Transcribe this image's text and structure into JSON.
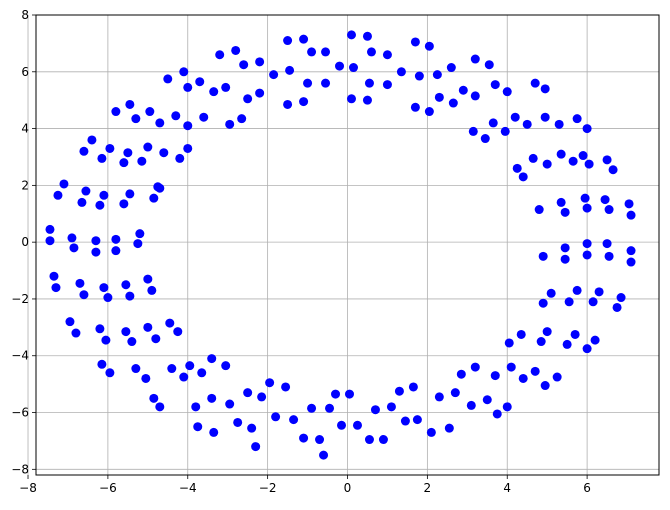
{
  "chart_data": {
    "type": "scatter",
    "title": "",
    "xlabel": "",
    "ylabel": "",
    "xlim": [
      -7.8,
      7.8
    ],
    "ylim": [
      -8.2,
      8.0
    ],
    "grid": true,
    "x_ticks": [
      -8,
      -6,
      -4,
      -2,
      0,
      2,
      4,
      6
    ],
    "y_ticks": [
      -8,
      -6,
      -4,
      -2,
      0,
      2,
      4,
      6,
      8
    ],
    "x_tick_labels": [
      "−8",
      "−6",
      "−4",
      "−2",
      "0",
      "2",
      "4",
      "6"
    ],
    "y_tick_labels": [
      "−8",
      "−6",
      "−4",
      "−2",
      "0",
      "2",
      "4",
      "6",
      "8"
    ],
    "marker_color": "#0000ff",
    "points": [
      [
        0.1,
        7.3
      ],
      [
        0.5,
        7.25
      ],
      [
        -1.5,
        7.1
      ],
      [
        -1.1,
        7.15
      ],
      [
        1.7,
        7.05
      ],
      [
        2.05,
        6.9
      ],
      [
        -2.8,
        6.75
      ],
      [
        -3.2,
        6.6
      ],
      [
        -0.9,
        6.7
      ],
      [
        -0.55,
        6.7
      ],
      [
        0.6,
        6.7
      ],
      [
        1.0,
        6.6
      ],
      [
        3.2,
        6.45
      ],
      [
        3.55,
        6.25
      ],
      [
        -2.2,
        6.35
      ],
      [
        -2.6,
        6.25
      ],
      [
        -0.2,
        6.2
      ],
      [
        0.15,
        6.15
      ],
      [
        2.6,
        6.15
      ],
      [
        2.25,
        5.9
      ],
      [
        1.35,
        6.0
      ],
      [
        1.8,
        5.85
      ],
      [
        -1.45,
        6.05
      ],
      [
        -1.85,
        5.9
      ],
      [
        -4.1,
        6.0
      ],
      [
        -4.5,
        5.75
      ],
      [
        -3.7,
        5.65
      ],
      [
        -4.0,
        5.45
      ],
      [
        -3.05,
        5.45
      ],
      [
        -3.35,
        5.3
      ],
      [
        -1.0,
        5.6
      ],
      [
        -0.55,
        5.6
      ],
      [
        0.55,
        5.6
      ],
      [
        1.0,
        5.55
      ],
      [
        3.7,
        5.55
      ],
      [
        4.0,
        5.3
      ],
      [
        -5.8,
        4.6
      ],
      [
        -5.45,
        4.85
      ],
      [
        -5.3,
        4.35
      ],
      [
        -4.95,
        4.6
      ],
      [
        -4.3,
        4.45
      ],
      [
        -4.0,
        4.1
      ],
      [
        -4.7,
        4.2
      ],
      [
        -3.6,
        4.4
      ],
      [
        -2.95,
        4.15
      ],
      [
        -2.65,
        4.35
      ],
      [
        -2.5,
        5.05
      ],
      [
        -2.2,
        5.25
      ],
      [
        -1.5,
        4.85
      ],
      [
        -1.1,
        4.95
      ],
      [
        0.1,
        5.05
      ],
      [
        0.5,
        5.0
      ],
      [
        2.05,
        4.6
      ],
      [
        1.7,
        4.75
      ],
      [
        2.3,
        5.1
      ],
      [
        2.65,
        4.9
      ],
      [
        2.9,
        5.35
      ],
      [
        3.2,
        5.15
      ],
      [
        4.7,
        5.6
      ],
      [
        4.95,
        5.4
      ],
      [
        4.5,
        4.15
      ],
      [
        4.95,
        4.4
      ],
      [
        5.3,
        4.15
      ],
      [
        5.75,
        4.35
      ],
      [
        6.0,
        4.0
      ],
      [
        4.2,
        4.4
      ],
      [
        3.15,
        3.9
      ],
      [
        3.45,
        3.65
      ],
      [
        3.65,
        4.2
      ],
      [
        3.95,
        3.9
      ],
      [
        4.25,
        2.6
      ],
      [
        4.4,
        2.3
      ],
      [
        -6.4,
        3.6
      ],
      [
        -6.6,
        3.2
      ],
      [
        -6.15,
        2.95
      ],
      [
        -5.95,
        3.3
      ],
      [
        -5.5,
        3.15
      ],
      [
        -5.15,
        2.85
      ],
      [
        -5.0,
        3.35
      ],
      [
        -4.6,
        3.15
      ],
      [
        -4.2,
        2.95
      ],
      [
        -4.0,
        3.3
      ],
      [
        -5.6,
        2.8
      ],
      [
        -4.7,
        1.9
      ],
      [
        -7.1,
        2.05
      ],
      [
        -7.25,
        1.65
      ],
      [
        -6.55,
        1.8
      ],
      [
        -6.65,
        1.4
      ],
      [
        -6.1,
        1.65
      ],
      [
        -6.2,
        1.3
      ],
      [
        -5.45,
        1.7
      ],
      [
        -5.6,
        1.35
      ],
      [
        -4.85,
        1.55
      ],
      [
        -4.75,
        1.95
      ],
      [
        4.65,
        2.95
      ],
      [
        5.0,
        2.75
      ],
      [
        5.35,
        3.1
      ],
      [
        5.65,
        2.85
      ],
      [
        5.9,
        3.05
      ],
      [
        6.05,
        2.75
      ],
      [
        6.5,
        2.9
      ],
      [
        6.65,
        2.55
      ],
      [
        4.8,
        1.15
      ],
      [
        5.35,
        1.4
      ],
      [
        5.45,
        1.05
      ],
      [
        5.95,
        1.55
      ],
      [
        6.45,
        1.5
      ],
      [
        6.55,
        1.15
      ],
      [
        6.0,
        1.2
      ],
      [
        7.05,
        1.35
      ],
      [
        7.1,
        0.95
      ],
      [
        -7.45,
        0.45
      ],
      [
        -7.45,
        0.05
      ],
      [
        -6.9,
        0.15
      ],
      [
        -6.85,
        -0.2
      ],
      [
        -6.3,
        0.05
      ],
      [
        -6.3,
        -0.35
      ],
      [
        -5.8,
        0.1
      ],
      [
        -5.8,
        -0.3
      ],
      [
        -5.2,
        0.3
      ],
      [
        -5.25,
        -0.05
      ],
      [
        4.9,
        -0.5
      ],
      [
        5.45,
        -0.2
      ],
      [
        5.45,
        -0.6
      ],
      [
        6.0,
        -0.05
      ],
      [
        6.0,
        -0.45
      ],
      [
        6.5,
        -0.05
      ],
      [
        6.55,
        -0.5
      ],
      [
        7.1,
        -0.3
      ],
      [
        7.1,
        -0.7
      ],
      [
        -7.35,
        -1.2
      ],
      [
        -7.3,
        -1.6
      ],
      [
        -6.7,
        -1.45
      ],
      [
        -6.6,
        -1.85
      ],
      [
        -6.1,
        -1.6
      ],
      [
        -6.0,
        -1.95
      ],
      [
        -5.55,
        -1.5
      ],
      [
        -5.45,
        -1.9
      ],
      [
        -5.0,
        -1.3
      ],
      [
        -4.9,
        -1.7
      ],
      [
        4.9,
        -2.15
      ],
      [
        5.1,
        -1.8
      ],
      [
        5.55,
        -2.1
      ],
      [
        5.75,
        -1.7
      ],
      [
        6.15,
        -2.1
      ],
      [
        6.3,
        -1.75
      ],
      [
        6.75,
        -2.3
      ],
      [
        6.85,
        -1.95
      ],
      [
        -6.95,
        -2.8
      ],
      [
        -6.8,
        -3.2
      ],
      [
        -6.2,
        -3.05
      ],
      [
        -6.05,
        -3.45
      ],
      [
        -5.55,
        -3.15
      ],
      [
        -5.4,
        -3.5
      ],
      [
        -5.0,
        -3.0
      ],
      [
        -4.8,
        -3.4
      ],
      [
        -4.45,
        -2.85
      ],
      [
        -4.25,
        -3.15
      ],
      [
        4.05,
        -3.55
      ],
      [
        4.35,
        -3.25
      ],
      [
        4.85,
        -3.5
      ],
      [
        5.0,
        -3.15
      ],
      [
        5.5,
        -3.6
      ],
      [
        5.7,
        -3.25
      ],
      [
        6.0,
        -3.75
      ],
      [
        6.2,
        -3.45
      ],
      [
        -6.15,
        -4.3
      ],
      [
        -5.95,
        -4.6
      ],
      [
        -5.3,
        -4.45
      ],
      [
        -5.05,
        -4.8
      ],
      [
        -4.85,
        -5.5
      ],
      [
        -4.7,
        -5.8
      ],
      [
        -4.4,
        -4.45
      ],
      [
        -4.1,
        -4.75
      ],
      [
        -3.95,
        -4.35
      ],
      [
        -3.65,
        -4.6
      ],
      [
        -3.4,
        -4.1
      ],
      [
        -3.05,
        -4.35
      ],
      [
        -3.8,
        -5.8
      ],
      [
        -3.75,
        -6.5
      ],
      [
        -3.4,
        -5.5
      ],
      [
        -3.35,
        -6.7
      ],
      [
        -2.95,
        -5.7
      ],
      [
        -2.75,
        -6.35
      ],
      [
        -2.5,
        -5.3
      ],
      [
        -2.4,
        -6.55
      ],
      [
        -2.3,
        -7.2
      ],
      [
        -2.15,
        -5.45
      ],
      [
        -1.95,
        -4.95
      ],
      [
        -1.55,
        -5.1
      ],
      [
        -1.8,
        -6.15
      ],
      [
        -1.35,
        -6.25
      ],
      [
        -1.1,
        -6.9
      ],
      [
        -0.9,
        -5.85
      ],
      [
        -0.7,
        -6.95
      ],
      [
        -0.6,
        -7.5
      ],
      [
        -0.45,
        -5.85
      ],
      [
        -0.3,
        -5.35
      ],
      [
        0.05,
        -5.35
      ],
      [
        -0.15,
        -6.45
      ],
      [
        0.25,
        -6.45
      ],
      [
        0.55,
        -6.95
      ],
      [
        0.7,
        -5.9
      ],
      [
        0.9,
        -6.95
      ],
      [
        1.1,
        -5.8
      ],
      [
        1.3,
        -5.25
      ],
      [
        1.45,
        -6.3
      ],
      [
        1.65,
        -5.1
      ],
      [
        1.75,
        -6.25
      ],
      [
        2.1,
        -6.7
      ],
      [
        2.3,
        -5.45
      ],
      [
        2.55,
        -6.55
      ],
      [
        2.7,
        -5.3
      ],
      [
        2.85,
        -4.65
      ],
      [
        3.1,
        -5.75
      ],
      [
        3.2,
        -4.4
      ],
      [
        3.5,
        -5.55
      ],
      [
        3.7,
        -4.7
      ],
      [
        3.75,
        -6.05
      ],
      [
        4.0,
        -5.8
      ],
      [
        4.1,
        -4.4
      ],
      [
        4.4,
        -4.8
      ],
      [
        4.7,
        -4.55
      ],
      [
        4.95,
        -5.05
      ],
      [
        5.25,
        -4.75
      ]
    ]
  }
}
